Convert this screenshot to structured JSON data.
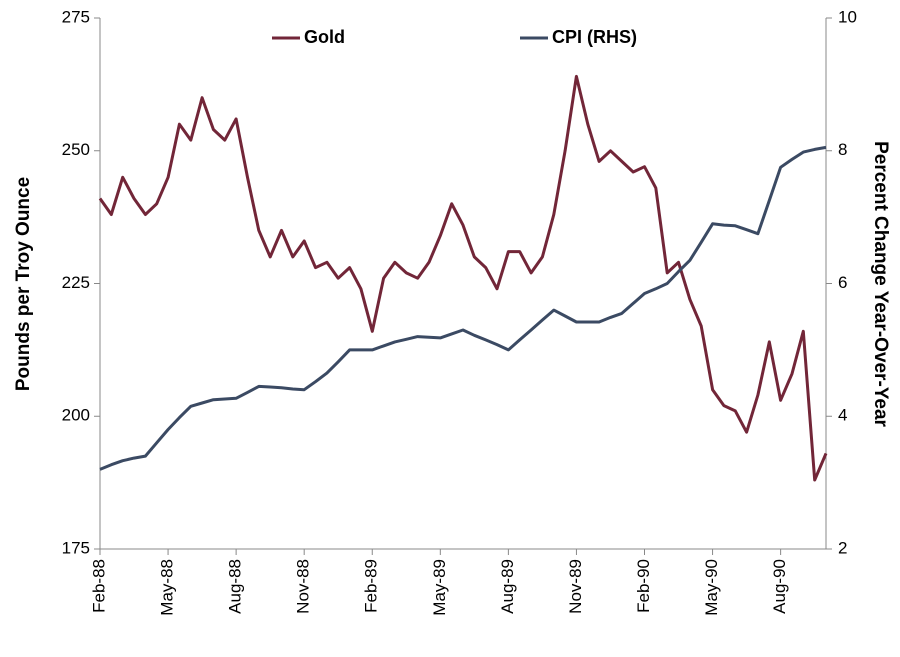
{
  "chart_data": {
    "type": "line",
    "y_label": "Pounds per Troy Ounce",
    "y2_label": "Percent Change Year-Over-Year",
    "categories": [
      "Feb-88",
      null,
      null,
      null,
      null,
      null,
      "May-88",
      null,
      null,
      null,
      null,
      null,
      "Aug-88",
      null,
      null,
      null,
      null,
      null,
      "Nov-88",
      null,
      null,
      null,
      null,
      null,
      "Feb-89",
      null,
      null,
      null,
      null,
      null,
      "May-89",
      null,
      null,
      null,
      null,
      null,
      "Aug-89",
      null,
      null,
      null,
      null,
      null,
      "Nov-89",
      null,
      null,
      null,
      null,
      null,
      "Feb-90",
      null,
      null,
      null,
      null,
      null,
      "May-90",
      null,
      null,
      null,
      null,
      null,
      "Aug-90",
      null,
      null,
      null,
      null
    ],
    "series": [
      {
        "name": "Gold",
        "color": "#722638",
        "axis": "y",
        "values": [
          241,
          238,
          245,
          241,
          238,
          240,
          245,
          255,
          252,
          260,
          254,
          252,
          256,
          245,
          235,
          230,
          235,
          230,
          233,
          228,
          229,
          226,
          228,
          224,
          216,
          226,
          229,
          227,
          226,
          229,
          234,
          240,
          236,
          230,
          228,
          224,
          231,
          231,
          227,
          230,
          238,
          250,
          264,
          255,
          248,
          250,
          248,
          246,
          247,
          243,
          227,
          229,
          222,
          217,
          205,
          202,
          201,
          197,
          204,
          214,
          203,
          208,
          216,
          188,
          193
        ]
      },
      {
        "name": "CPI (RHS)",
        "color": "#3b4a63",
        "axis": "y2",
        "values": [
          3.2,
          3.27,
          3.33,
          3.37,
          3.4,
          3.6,
          3.8,
          3.98,
          4.15,
          4.2,
          4.25,
          4.26,
          4.27,
          4.36,
          4.45,
          4.44,
          4.43,
          4.41,
          4.4,
          4.52,
          4.65,
          4.82,
          5.0,
          5.0,
          5.0,
          5.06,
          5.12,
          5.16,
          5.2,
          5.19,
          5.18,
          5.24,
          5.3,
          5.22,
          5.15,
          5.08,
          5.0,
          5.15,
          5.3,
          5.45,
          5.6,
          5.51,
          5.42,
          5.42,
          5.42,
          5.49,
          5.55,
          5.7,
          5.85,
          5.92,
          6.0,
          6.18,
          6.35,
          6.62,
          6.9,
          6.88,
          6.87,
          6.81,
          6.75,
          7.25,
          7.75,
          7.87,
          7.98,
          8.02,
          8.05
        ]
      }
    ],
    "ylim": [
      175,
      275
    ],
    "yticks": [
      175,
      200,
      225,
      250,
      275
    ],
    "y2lim": [
      2,
      10
    ],
    "y2ticks": [
      2,
      4,
      6,
      8,
      10
    ],
    "grid": false,
    "legend": "top"
  }
}
